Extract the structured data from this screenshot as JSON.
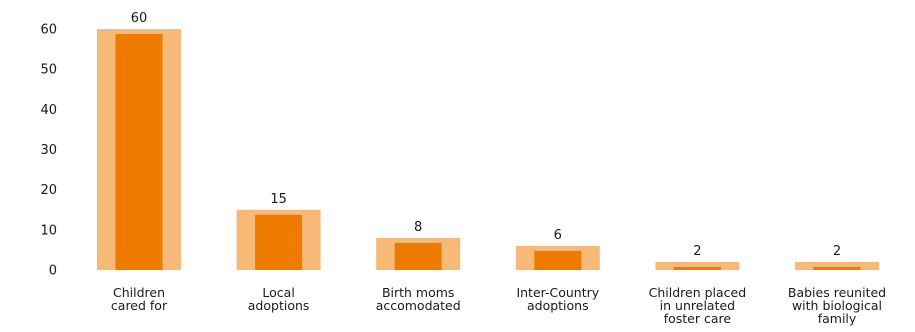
{
  "chart_data": {
    "type": "bar",
    "title": "",
    "xlabel": "",
    "ylabel": "",
    "ylim": [
      0,
      60
    ],
    "yticks": [
      0,
      10,
      20,
      30,
      40,
      50,
      60
    ],
    "grid": false,
    "legend": "none",
    "categories": [
      [
        "Children",
        "cared for"
      ],
      [
        "Local",
        "adoptions"
      ],
      [
        "Birth moms",
        "accomodated"
      ],
      [
        "Inter-Country",
        "adoptions"
      ],
      [
        "Children placed",
        "in unrelated",
        "foster care"
      ],
      [
        "Babies reunited",
        "with biological",
        "family"
      ]
    ],
    "values": [
      60,
      15,
      8,
      6,
      2,
      2
    ],
    "colors": {
      "bar_outer": "#F7B978",
      "bar_inner": "#EE7A00",
      "text": "#1a1a1a"
    }
  }
}
